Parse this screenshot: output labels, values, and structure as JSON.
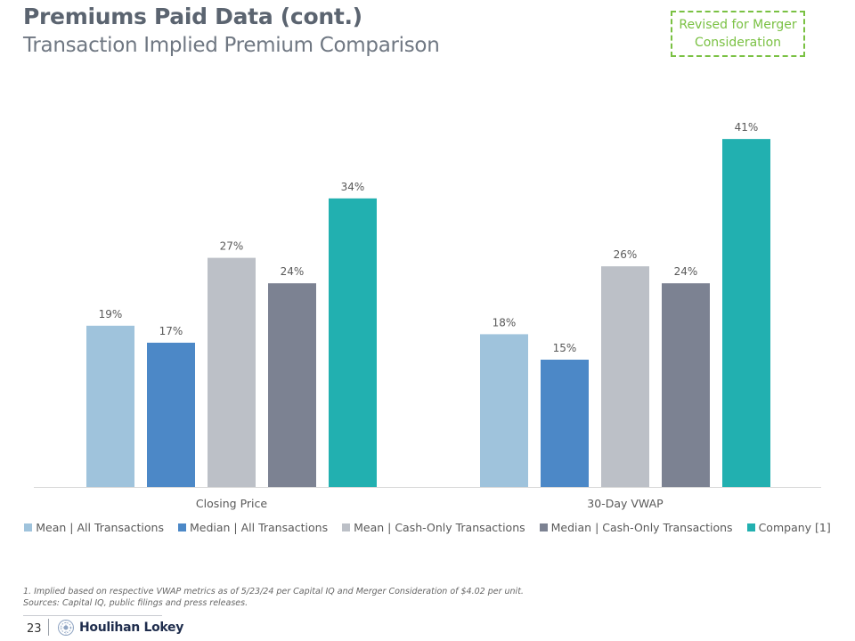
{
  "header": {
    "title": "Premiums Paid Data (cont.)",
    "subtitle": "Transaction Implied Premium Comparison",
    "revised_note": "Revised for Merger Consideration"
  },
  "chart_data": {
    "type": "bar",
    "title": "Transaction Implied Premium Comparison",
    "categories": [
      "Closing Price",
      "30-Day VWAP"
    ],
    "series": [
      {
        "name": "Mean | All Transactions",
        "color": "#9fc3dc",
        "values": [
          19,
          18
        ],
        "labels": [
          "19%",
          "18%"
        ]
      },
      {
        "name": "Median | All Transactions",
        "color": "#4c88c7",
        "values": [
          17,
          15
        ],
        "labels": [
          "17%",
          "15%"
        ]
      },
      {
        "name": "Mean | Cash-Only Transactions",
        "color": "#bcc0c7",
        "values": [
          27,
          26
        ],
        "labels": [
          "27%",
          "26%"
        ]
      },
      {
        "name": "Median | Cash-Only Transactions",
        "color": "#7c8292",
        "values": [
          24,
          24
        ],
        "labels": [
          "24%",
          "24%"
        ]
      },
      {
        "name": "Company [1]",
        "color": "#22b0b0",
        "values": [
          34,
          41
        ],
        "labels": [
          "34%",
          "41%"
        ]
      }
    ],
    "unit": "%",
    "ylim": [
      0,
      45
    ],
    "legend_position": "bottom"
  },
  "footnotes": {
    "note1": "1.   Implied based on respective VWAP metrics as of 5/23/24 per Capital IQ and Merger Consideration of $4.02 per unit.",
    "sources": "Sources: Capital IQ, public filings and press releases."
  },
  "footer": {
    "page_number": "23",
    "logo_text": "Houlihan Lokey"
  }
}
